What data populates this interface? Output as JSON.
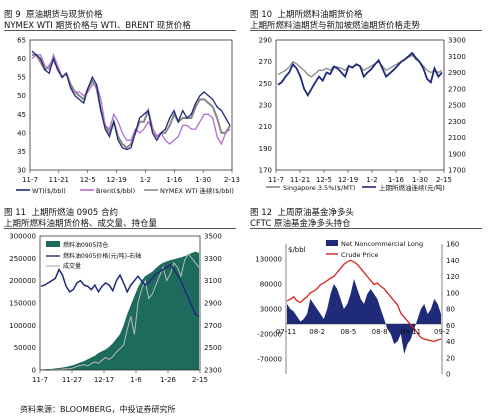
{
  "source": "资料来源：BLOOMBERG，中投证券研究所",
  "chart_data": [
    {
      "type": "line",
      "figure": "图 9",
      "title": "原油期货与现货价格",
      "subtitle": "NYMEX WTI 期货价格与 WTI、BRENT 现货价格",
      "x_ticks": [
        "11-7",
        "11-21",
        "12-5",
        "12-19",
        "1-2",
        "1-16",
        "1-30",
        "2-13"
      ],
      "ylim": [
        30,
        65
      ],
      "y_ticks": [
        30,
        35,
        40,
        45,
        50,
        55,
        60,
        65
      ],
      "colors": {
        "WTI": "#1f2a78",
        "Brent": "#b36fd1",
        "NYMEX": "#888888"
      },
      "legend": [
        "WTI($/bbl)",
        "Brent($/bbl)",
        "NYMEX WTI 连续($/bbl)"
      ],
      "series": [
        {
          "name": "WTI($/bbl)",
          "key": "WTI",
          "values": [
            62,
            61,
            60,
            57,
            56,
            60,
            57,
            55,
            56,
            52,
            50,
            49,
            48,
            52,
            55,
            53,
            46,
            41,
            39,
            43,
            38,
            36,
            35.5,
            36,
            40,
            44,
            45,
            46,
            40,
            38,
            40,
            41,
            44,
            46,
            43,
            46,
            44,
            45,
            48,
            50,
            51,
            50,
            49,
            47,
            46,
            44,
            42
          ]
        },
        {
          "name": "Brent($/bbl)",
          "key": "Brent",
          "values": [
            60,
            61,
            61,
            58,
            57,
            61,
            58,
            55,
            56,
            52,
            51,
            51,
            50,
            51,
            53,
            53,
            49,
            42,
            41,
            45,
            43,
            40,
            38,
            38,
            41,
            40,
            41,
            43,
            41,
            39,
            40,
            38,
            37,
            38,
            39,
            42,
            42,
            41,
            41,
            43,
            45,
            45,
            44,
            39,
            37,
            40,
            41
          ]
        },
        {
          "name": "NYMEX WTI 连续($/bbl)",
          "key": "NYMEX",
          "values": [
            61,
            61,
            59,
            57,
            58,
            60,
            57,
            55,
            56,
            53,
            51,
            50,
            49,
            52,
            54,
            52,
            46,
            42,
            40,
            43,
            39,
            37,
            36,
            37,
            40,
            43,
            43,
            46,
            41,
            39,
            40,
            40,
            42,
            45,
            43,
            44,
            44,
            44,
            47,
            49,
            49,
            48,
            47,
            44,
            40,
            40,
            42
          ]
        }
      ]
    },
    {
      "type": "line",
      "figure": "图 10",
      "title": "上期所燃料油期货价格",
      "subtitle": "上期所燃料油期货与新加坡燃油期货价格走势",
      "x_ticks": [
        "11-7",
        "11-21",
        "12-5",
        "12-19",
        "1-2",
        "1-16",
        "1-30",
        "2-15"
      ],
      "ylim_left": [
        170,
        290
      ],
      "y_ticks_left": [
        170,
        190,
        210,
        230,
        250,
        270,
        290
      ],
      "ylim_right": [
        1700,
        3300
      ],
      "y_ticks_right": [
        1700,
        1900,
        2100,
        2300,
        2500,
        2700,
        2900,
        3100,
        3300
      ],
      "colors": {
        "Singapore": "#888888",
        "Shanghai": "#1f2a78"
      },
      "legend": [
        "Singapore 3.5%($/MT)",
        "上期所燃油连续(元/吨)"
      ],
      "series": [
        {
          "name": "Singapore 3.5%($/MT)",
          "key": "Singapore",
          "axis": "left",
          "values": [
            258,
            260,
            262,
            265,
            270,
            268,
            265,
            262,
            258,
            256,
            259,
            262,
            262,
            264,
            262,
            266,
            265,
            264,
            262,
            266,
            265,
            268,
            266,
            262,
            264,
            266,
            268,
            270,
            266,
            262,
            264,
            266,
            268,
            270,
            272,
            274,
            276,
            272,
            270,
            266,
            262,
            260,
            262,
            260,
            262
          ]
        },
        {
          "name": "上期所燃油连续(元/吨)",
          "key": "Shanghai",
          "axis": "right",
          "values": [
            2750,
            2780,
            2850,
            2900,
            3000,
            2950,
            2850,
            2700,
            2620,
            2700,
            2780,
            2850,
            2800,
            2900,
            2880,
            2970,
            2950,
            2900,
            2850,
            2980,
            2960,
            3000,
            2980,
            2850,
            2900,
            2940,
            3000,
            3050,
            2950,
            2850,
            2890,
            2930,
            2980,
            3030,
            3060,
            3100,
            3140,
            3080,
            3030,
            2950,
            2820,
            2780,
            2950,
            2850,
            2900
          ]
        }
      ]
    },
    {
      "type": "area",
      "figure": "图 11",
      "title": "上期所燃油 0905 合约",
      "subtitle": "上期所燃料油期货价格、成交量、持仓量",
      "x_ticks": [
        "11-7",
        "11-27",
        "12-17",
        "1-6",
        "1-26",
        "2-15"
      ],
      "ylim_left": [
        0,
        300000
      ],
      "y_ticks_left": [
        "0",
        "50000",
        "100000",
        "150000",
        "200000",
        "250000",
        "300000"
      ],
      "ylim_right": [
        2300,
        3500
      ],
      "y_ticks_right": [
        2300,
        2500,
        2700,
        2900,
        3100,
        3300,
        3500
      ],
      "colors": {
        "oi": "#1d6b5c",
        "price": "#1f2a78",
        "vol": "#bbbbbb"
      },
      "legend": [
        "燃料油0905持仓",
        "燃料油0905价格(元/吨)-右轴",
        "成交量"
      ],
      "series": [
        {
          "name": "燃料油0905持仓",
          "key": "oi",
          "axis": "left",
          "values": [
            1000,
            1500,
            2000,
            2500,
            3500,
            4500,
            5500,
            7000,
            9000,
            11000,
            14000,
            17000,
            20000,
            24000,
            28000,
            32000,
            38000,
            42000,
            46000,
            52000,
            60000,
            70000,
            80000,
            100000,
            125000,
            145000,
            165000,
            185000,
            200000,
            210000,
            215000,
            220000,
            228000,
            235000,
            240000,
            243000,
            246000,
            248000,
            250000,
            252000,
            255000,
            258000,
            262000,
            265000,
            262000
          ]
        },
        {
          "name": "成交量",
          "key": "vol",
          "axis": "left",
          "values": [
            0,
            0,
            0,
            500,
            800,
            1000,
            2000,
            2500,
            3000,
            5000,
            8000,
            10000,
            12000,
            9000,
            14000,
            18000,
            15000,
            22000,
            28000,
            24000,
            30000,
            40000,
            48000,
            55000,
            90000,
            120000,
            80000,
            150000,
            180000,
            200000,
            160000,
            170000,
            190000,
            210000,
            230000,
            200000,
            215000,
            240000,
            230000,
            210000,
            245000,
            260000,
            250000,
            240000,
            230000
          ]
        },
        {
          "name": "燃料油0905价格(元/吨)-右轴",
          "key": "price",
          "axis": "right",
          "values": [
            3050,
            3060,
            3080,
            3100,
            3120,
            3200,
            3150,
            3050,
            3000,
            3020,
            3080,
            3100,
            3060,
            3050,
            3020,
            3060,
            3000,
            3050,
            3080,
            3060,
            3010,
            3100,
            3150,
            3080,
            3000,
            3060,
            3100,
            3140,
            3100,
            3060,
            3080,
            3120,
            3160,
            3180,
            3200,
            3220,
            3240,
            3200,
            3150,
            3100,
            3020,
            2950,
            2870,
            2800,
            2780
          ]
        }
      ]
    },
    {
      "type": "area",
      "figure": "图 12",
      "title": "上周原油基金净多头",
      "subtitle": "CFTC 原油基金净多头持仓",
      "x_ticks": [
        "07-11",
        "08-2",
        "08-5",
        "08-8",
        "08-11",
        "09-2"
      ],
      "ylabel_left": "$/bbl",
      "ylim_left": [
        -100000,
        160000
      ],
      "y_ticks_left": [
        -70000,
        -20000,
        30000,
        80000,
        130000
      ],
      "ylim_right": [
        0,
        160
      ],
      "y_ticks_right": [
        0,
        20,
        40,
        60,
        80,
        100,
        120,
        140,
        160
      ],
      "colors": {
        "net": "#1f2a78",
        "crude": "#d6241c"
      },
      "legend": [
        "Net Noncommercial Long",
        "Crude Price"
      ],
      "series": [
        {
          "name": "Net Noncommercial Long",
          "key": "net",
          "axis": "left",
          "values": [
            40000,
            30000,
            25000,
            15000,
            5000,
            10000,
            20000,
            50000,
            40000,
            30000,
            20000,
            10000,
            30000,
            60000,
            80000,
            70000,
            50000,
            30000,
            40000,
            60000,
            90000,
            70000,
            50000,
            40000,
            60000,
            70000,
            60000,
            50000,
            30000,
            10000,
            -10000,
            -20000,
            -40000,
            -35000,
            -20000,
            -60000,
            -40000,
            -30000,
            -10000,
            10000,
            30000,
            40000,
            20000,
            30000,
            50000,
            40000,
            20000
          ]
        },
        {
          "name": "Crude Price",
          "key": "crude",
          "axis": "right",
          "values": [
            90,
            92,
            95,
            90,
            88,
            92,
            95,
            100,
            102,
            105,
            110,
            112,
            115,
            118,
            120,
            125,
            130,
            135,
            138,
            140,
            138,
            135,
            130,
            125,
            120,
            115,
            110,
            112,
            108,
            105,
            100,
            95,
            90,
            85,
            75,
            70,
            65,
            60,
            56,
            50,
            45,
            43,
            42,
            41,
            40,
            42,
            43
          ]
        }
      ]
    }
  ]
}
